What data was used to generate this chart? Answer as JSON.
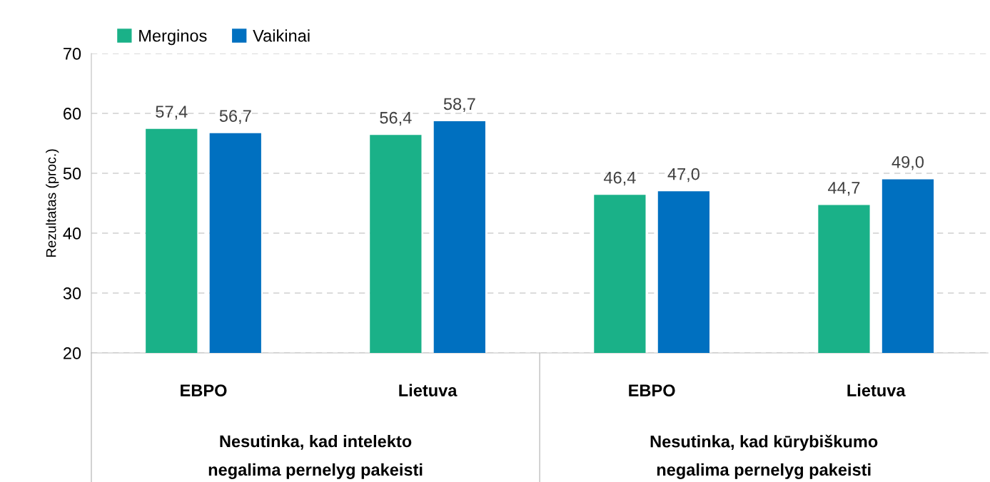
{
  "chart_data": {
    "type": "bar",
    "ylabel": "Rezultatas (proc.)",
    "categories": [
      "EBPO",
      "Lietuva",
      "EBPO",
      "Lietuva"
    ],
    "series": [
      {
        "name": "Merginos",
        "color": "#1ab188",
        "values": [
          57.4,
          56.4,
          46.4,
          44.7
        ],
        "value_labels": [
          "57,4",
          "56,4",
          "46,4",
          "44,7"
        ]
      },
      {
        "name": "Vaikinai",
        "color": "#0070c0",
        "values": [
          56.7,
          58.7,
          47.0,
          49.0
        ],
        "value_labels": [
          "56,7",
          "58,7",
          "47,0",
          "49,0"
        ]
      }
    ],
    "annotations": [
      "Nesutinka, kad intelekto negalima pernelyg pakeisti",
      "Nesutinka, kad kūrybiškumo negalima pernelyg pakeisti"
    ],
    "ylim": [
      20,
      70
    ],
    "yticks": [
      20,
      30,
      40,
      50,
      60,
      70
    ],
    "grid": "y",
    "legend": "top left"
  }
}
